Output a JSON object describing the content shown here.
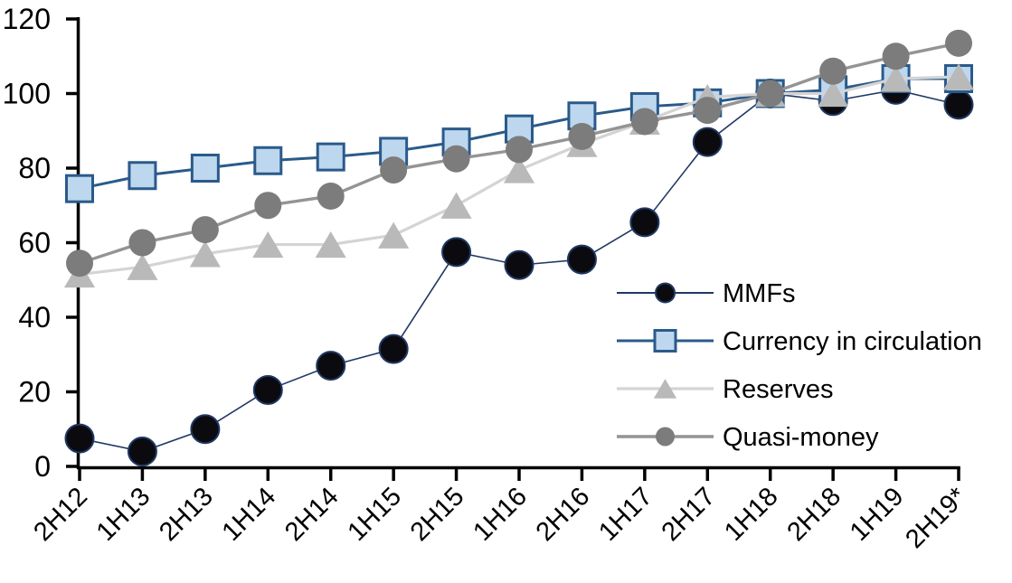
{
  "chart_data": {
    "type": "line",
    "title": "",
    "xlabel": "",
    "ylabel": "",
    "ylim": [
      0,
      120
    ],
    "y_ticks": [
      0,
      20,
      40,
      60,
      80,
      100,
      120
    ],
    "grid": false,
    "legend_position": "inside-right",
    "categories": [
      "2H12",
      "1H13",
      "2H13",
      "1H14",
      "2H14",
      "1H15",
      "2H15",
      "1H16",
      "2H16",
      "1H17",
      "2H17",
      "1H18",
      "2H18",
      "1H19",
      "2H19*"
    ],
    "series": [
      {
        "id": "mmfs",
        "name": "MMFs",
        "values": [
          7.5,
          4,
          10,
          20.5,
          27,
          31.5,
          57.5,
          54,
          55.5,
          65.5,
          87,
          100,
          98,
          101,
          97
        ],
        "line_color": "#203864",
        "line_width": 1.6,
        "marker": {
          "shape": "circle",
          "fill": "#0b0b0f",
          "stroke": "#1f3864",
          "stroke_width": 2,
          "size": 31
        }
      },
      {
        "id": "currency",
        "name": "Currency in circulation",
        "values": [
          74.5,
          78,
          80,
          82,
          83,
          84.5,
          87,
          90.5,
          94,
          96.5,
          97.5,
          100,
          101,
          104,
          104
        ],
        "line_color": "#2a5a8a",
        "line_width": 3,
        "marker": {
          "shape": "square",
          "fill": "#bdd7ee",
          "stroke": "#2a5a8a",
          "stroke_width": 3,
          "size": 29
        }
      },
      {
        "id": "reserves",
        "name": "Reserves",
        "values": [
          51.5,
          53.5,
          57,
          59.5,
          59.5,
          62,
          70,
          79.5,
          86.5,
          92.5,
          99,
          100,
          100,
          104,
          104.5
        ],
        "line_color": "#d4d4d4",
        "line_width": 3.2,
        "marker": {
          "shape": "triangle",
          "fill": "#b9b9b9",
          "stroke": "none",
          "stroke_width": 0,
          "size": 31
        }
      },
      {
        "id": "quasi_money",
        "name": "Quasi-money",
        "values": [
          54.5,
          60,
          63.5,
          70,
          72.5,
          79.5,
          82.5,
          85,
          88.5,
          92.5,
          95.5,
          100,
          106,
          110,
          113.5
        ],
        "line_color": "#949494",
        "line_width": 3.4,
        "marker": {
          "shape": "circle",
          "fill": "#7c7c7c",
          "stroke": "none",
          "stroke_width": 0,
          "size": 30
        }
      }
    ],
    "axis_color": "#000000"
  }
}
